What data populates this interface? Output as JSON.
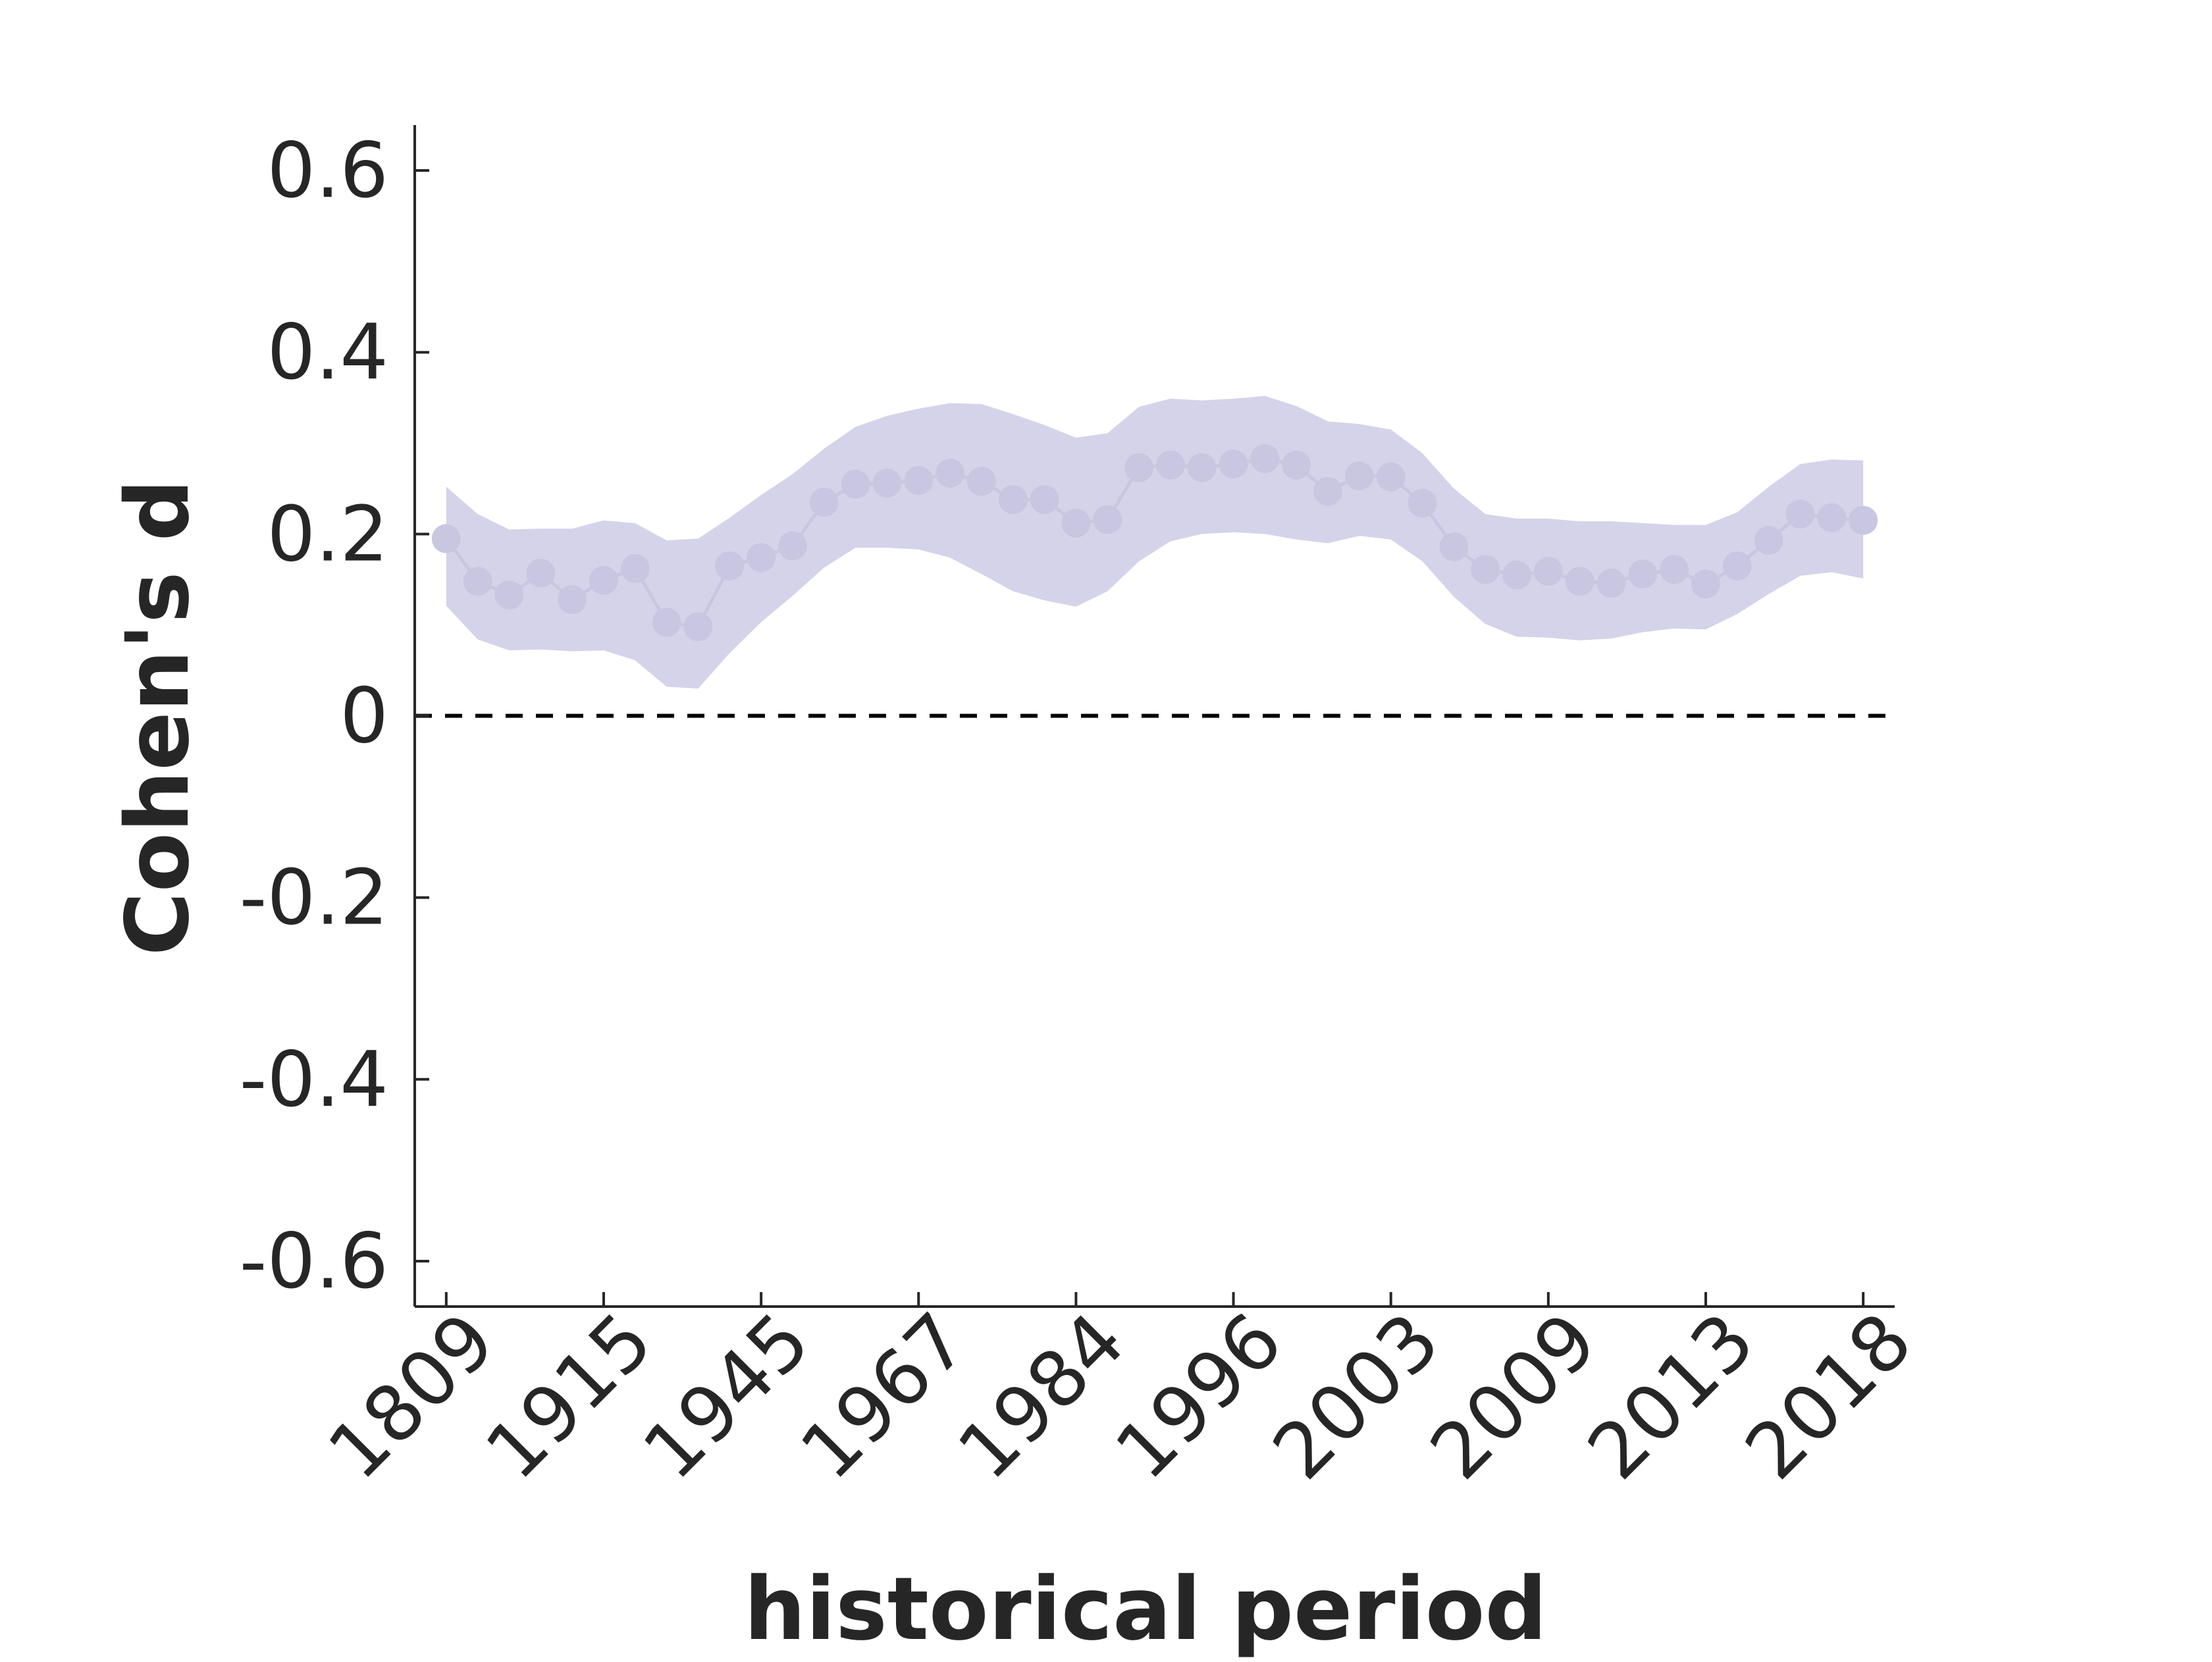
{
  "chart_data": {
    "type": "line",
    "xlabel": "historical period",
    "ylabel": "Cohen's d",
    "ylim": [
      -0.65,
      0.65
    ],
    "yticks": [
      -0.6,
      -0.4,
      -0.2,
      0,
      0.2,
      0.4,
      0.6
    ],
    "ytick_labels": [
      "-0.6",
      "-0.4",
      "-0.2",
      "0",
      "0.2",
      "0.4",
      "0.6"
    ],
    "xtick_positions": [
      1,
      6,
      11,
      16,
      21,
      26,
      31,
      36,
      41,
      46
    ],
    "xtick_labels": [
      "1809",
      "1915",
      "1945",
      "1967",
      "1984",
      "1996",
      "2003",
      "2009",
      "2013",
      "2018"
    ],
    "reference_line": {
      "y": 0,
      "style": "dashed"
    },
    "grid": false,
    "colors": {
      "series": "#c9c6e2",
      "band": "#d5d3ea",
      "reference": "#000000",
      "axis": "#262626"
    },
    "series": [
      {
        "x": [
          1,
          2,
          3,
          4,
          5,
          6,
          7,
          8,
          9,
          10,
          11,
          12,
          13,
          14,
          15,
          16,
          17,
          18,
          19,
          20,
          21,
          22,
          23,
          24,
          25,
          26,
          27,
          28,
          29,
          30,
          31,
          32,
          33,
          34,
          35,
          36,
          37,
          38,
          39,
          40,
          41,
          42,
          43,
          44,
          45,
          46
        ],
        "values": [
          0.195,
          0.148,
          0.133,
          0.157,
          0.128,
          0.149,
          0.162,
          0.103,
          0.098,
          0.165,
          0.174,
          0.187,
          0.235,
          0.255,
          0.256,
          0.259,
          0.267,
          0.258,
          0.238,
          0.238,
          0.212,
          0.216,
          0.273,
          0.276,
          0.273,
          0.277,
          0.283,
          0.276,
          0.247,
          0.264,
          0.263,
          0.234,
          0.186,
          0.161,
          0.155,
          0.159,
          0.148,
          0.146,
          0.156,
          0.161,
          0.145,
          0.165,
          0.193,
          0.222,
          0.218,
          0.215
        ],
        "ci_upper": [
          0.252,
          0.222,
          0.205,
          0.206,
          0.206,
          0.215,
          0.212,
          0.193,
          0.195,
          0.218,
          0.243,
          0.266,
          0.294,
          0.318,
          0.33,
          0.338,
          0.344,
          0.343,
          0.332,
          0.32,
          0.306,
          0.311,
          0.34,
          0.349,
          0.347,
          0.349,
          0.352,
          0.341,
          0.324,
          0.321,
          0.315,
          0.289,
          0.25,
          0.222,
          0.217,
          0.217,
          0.214,
          0.214,
          0.212,
          0.21,
          0.21,
          0.224,
          0.252,
          0.277,
          0.282,
          0.281
        ],
        "ci_lower": [
          0.121,
          0.084,
          0.072,
          0.073,
          0.071,
          0.072,
          0.061,
          0.032,
          0.03,
          0.069,
          0.103,
          0.132,
          0.163,
          0.185,
          0.185,
          0.183,
          0.174,
          0.156,
          0.137,
          0.127,
          0.12,
          0.137,
          0.17,
          0.192,
          0.2,
          0.202,
          0.2,
          0.194,
          0.19,
          0.198,
          0.194,
          0.17,
          0.131,
          0.101,
          0.087,
          0.086,
          0.083,
          0.085,
          0.092,
          0.096,
          0.095,
          0.112,
          0.134,
          0.154,
          0.158,
          0.151
        ]
      }
    ]
  }
}
